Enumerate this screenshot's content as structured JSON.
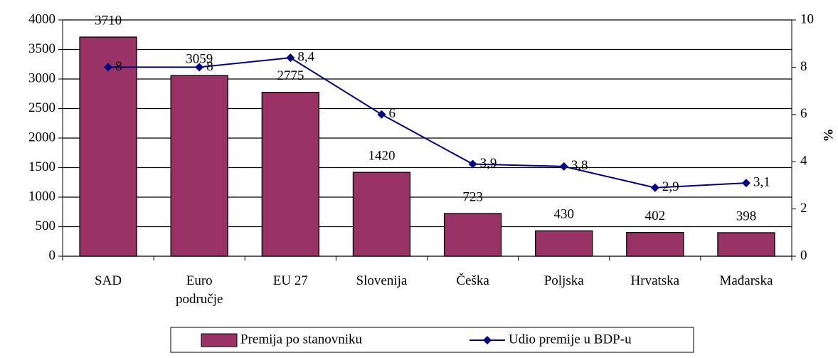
{
  "chart_data": {
    "type": "bar",
    "categories": [
      "SAD",
      "Euro područje",
      "EU 27",
      "Slovenija",
      "Češka",
      "Poljska",
      "Hrvatska",
      "Mađarska"
    ],
    "series": [
      {
        "name": "Premija po stanovniku",
        "type": "bar",
        "color": "#993366",
        "values": [
          3710,
          3059,
          2775,
          1420,
          723,
          430,
          402,
          398
        ]
      },
      {
        "name": "Udio premije u BDP-u",
        "type": "line",
        "color": "#000080",
        "axis": "y2",
        "values": [
          8,
          8,
          8.4,
          6,
          3.9,
          3.8,
          2.9,
          3.1
        ],
        "value_labels": [
          "8",
          "8",
          "8,4",
          "6",
          "3,9",
          "3,8",
          "2,9",
          "3,1"
        ]
      }
    ],
    "ylim": [
      0,
      4000
    ],
    "yticks": [
      0,
      500,
      1000,
      1500,
      2000,
      2500,
      3000,
      3500,
      4000
    ],
    "y2lim": [
      0,
      10
    ],
    "y2ticks": [
      0,
      2,
      4,
      6,
      8,
      10
    ],
    "y2label": "%",
    "grid": true
  }
}
